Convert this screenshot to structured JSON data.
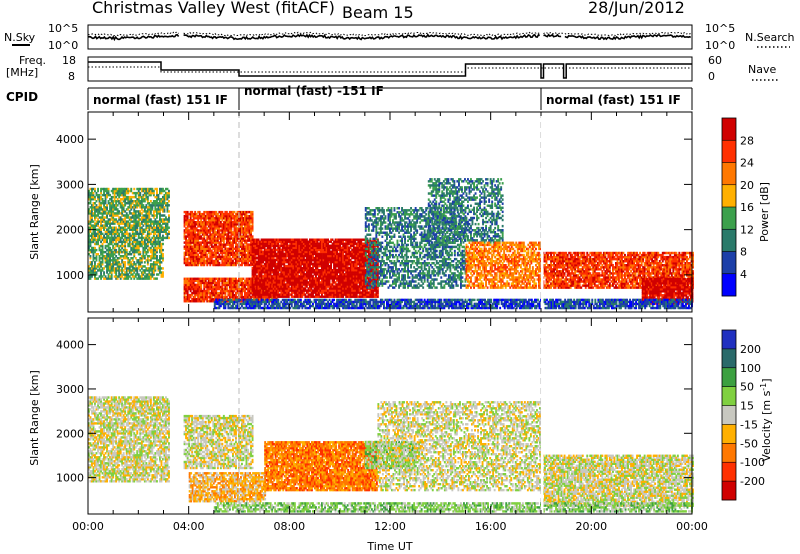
{
  "header": {
    "station": "Christmas Valley West (fitACF)",
    "beam": "Beam 15",
    "date": "28/Jun/2012"
  },
  "labels": {
    "nsky": "N.Sky",
    "nsearch": "N.Search",
    "freq_line1": "Freq.",
    "freq_line2": "[MHz]",
    "nave": "Nave",
    "cpid": "CPID",
    "noise_tick_top": "10^5",
    "noise_tick_bottom": "10^0",
    "freq_tick_top": "18",
    "freq_tick_bottom": "8",
    "nave_tick_top": "60",
    "nave_tick_bottom": "0"
  },
  "cpid_modes": [
    {
      "label": "normal (fast) 151 IF",
      "start": 0.0,
      "end": 6.0
    },
    {
      "label": "normal (fast) -151 IF",
      "start": 6.0,
      "end": 18.0
    },
    {
      "label": "normal (fast) 151 IF",
      "start": 18.0,
      "end": 24.0
    }
  ],
  "chart_data": [
    {
      "type": "heatmap",
      "panel": "power",
      "quantity": "Power",
      "xlabel": "",
      "ylabel": "Slant Range [km]",
      "xlim": [
        0,
        24
      ],
      "ylim": [
        180,
        4600
      ],
      "yticks": [
        1000,
        2000,
        3000,
        4000
      ],
      "colorbar": {
        "label": "Power [dB]",
        "ticks": [
          "28",
          "24",
          "20",
          "16",
          "12",
          "8",
          "4"
        ],
        "colors": [
          "#d00000",
          "#ff3000",
          "#ff7800",
          "#ffb000",
          "#3ca04c",
          "#2a7a6a",
          "#1c3fa8",
          "#0000ff"
        ]
      },
      "echo_regions": [
        {
          "x0": 0.0,
          "x1": 3.2,
          "r0": 1800,
          "r1": 2900,
          "level": 4,
          "density": 0.75
        },
        {
          "x0": 0.0,
          "x1": 3.0,
          "r0": 900,
          "r1": 1800,
          "level": 4,
          "density": 0.7
        },
        {
          "x0": 3.8,
          "x1": 6.5,
          "r0": 1200,
          "r1": 2400,
          "level": 1,
          "density": 0.9
        },
        {
          "x0": 3.8,
          "x1": 7.5,
          "r0": 400,
          "r1": 900,
          "level": 1,
          "density": 0.9
        },
        {
          "x0": 6.5,
          "x1": 11.5,
          "r0": 500,
          "r1": 1800,
          "level": 0,
          "density": 0.95
        },
        {
          "x0": 11.0,
          "x1": 15.0,
          "r0": 700,
          "r1": 2500,
          "level": 5,
          "density": 0.55
        },
        {
          "x0": 13.5,
          "x1": 16.5,
          "r0": 1700,
          "r1": 3100,
          "level": 5,
          "density": 0.5
        },
        {
          "x0": 15.0,
          "x1": 18.0,
          "r0": 700,
          "r1": 1700,
          "level": 2,
          "density": 0.7
        },
        {
          "x0": 18.0,
          "x1": 24.0,
          "r0": 700,
          "r1": 1500,
          "level": 1,
          "density": 0.85
        },
        {
          "x0": 22.0,
          "x1": 24.0,
          "r0": 350,
          "r1": 900,
          "level": 0,
          "density": 0.9
        },
        {
          "x0": 5.0,
          "x1": 24.0,
          "r0": 250,
          "r1": 450,
          "level": 6,
          "density": 0.8
        }
      ]
    },
    {
      "type": "heatmap",
      "panel": "velocity",
      "quantity": "Velocity",
      "xlabel": "Time UT",
      "ylabel": "Slant Range [km]",
      "xlim": [
        0,
        24
      ],
      "ylim": [
        180,
        4600
      ],
      "xticks": [
        "00:00",
        "04:00",
        "08:00",
        "12:00",
        "16:00",
        "20:00",
        "00:00"
      ],
      "yticks": [
        1000,
        2000,
        3000,
        4000
      ],
      "colorbar": {
        "label": "Velocity [m s^-1]",
        "ticks": [
          "200",
          "100",
          "50",
          "15",
          "-15",
          "-50",
          "-100",
          "-200"
        ],
        "colors": [
          "#2030c0",
          "#2a6a6a",
          "#3ca040",
          "#80d040",
          "#c8c8c0",
          "#ffb000",
          "#ff7800",
          "#ff3000",
          "#d00000"
        ]
      },
      "echo_regions": [
        {
          "x0": 0.0,
          "x1": 3.2,
          "r0": 900,
          "r1": 2800,
          "level": 4,
          "density": 0.75
        },
        {
          "x0": 3.8,
          "x1": 6.5,
          "r0": 1200,
          "r1": 2400,
          "level": 4,
          "density": 0.7
        },
        {
          "x0": 4.0,
          "x1": 7.0,
          "r0": 450,
          "r1": 1100,
          "level": 5,
          "density": 0.8
        },
        {
          "x0": 7.0,
          "x1": 11.5,
          "r0": 700,
          "r1": 1800,
          "level": 6,
          "density": 0.9
        },
        {
          "x0": 11.0,
          "x1": 13.0,
          "r0": 1200,
          "r1": 1800,
          "level": 3,
          "density": 0.7
        },
        {
          "x0": 11.5,
          "x1": 18.0,
          "r0": 700,
          "r1": 2700,
          "level": 4,
          "density": 0.55
        },
        {
          "x0": 18.0,
          "x1": 24.0,
          "r0": 350,
          "r1": 1500,
          "level": 4,
          "density": 0.8
        },
        {
          "x0": 5.0,
          "x1": 24.0,
          "r0": 220,
          "r1": 420,
          "level": 3,
          "density": 0.7
        }
      ]
    }
  ]
}
